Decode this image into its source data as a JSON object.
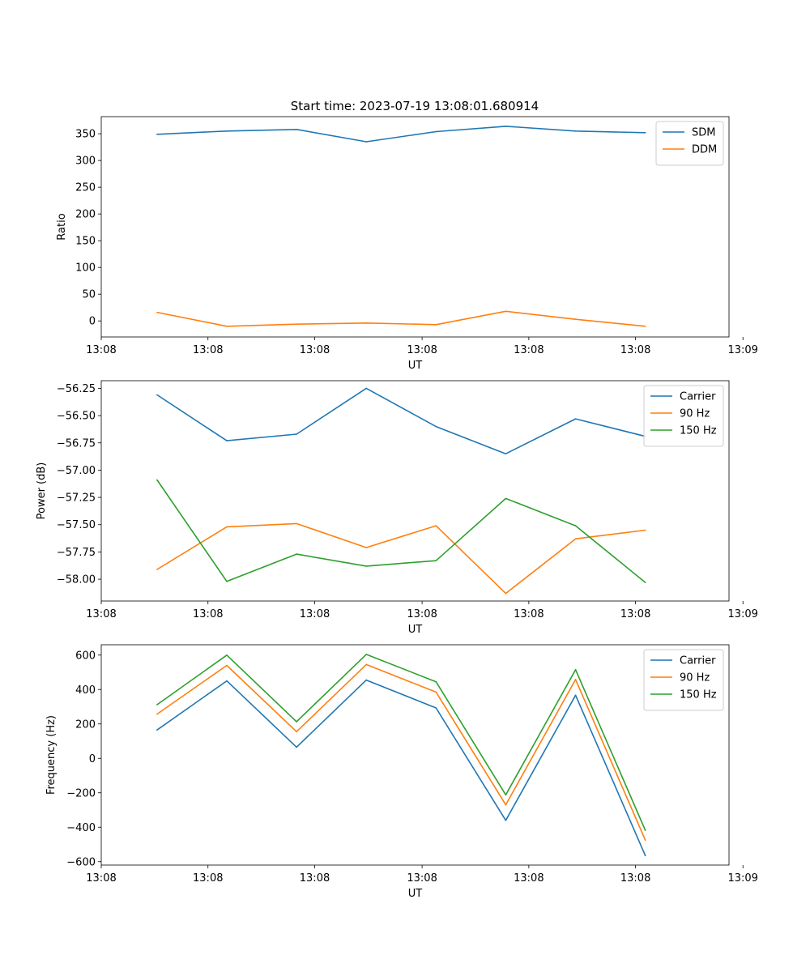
{
  "figure_title": "Start time: 2023-07-19 13:08:01.680914",
  "colors": {
    "blue": "#1f77b4",
    "orange": "#ff7f0e",
    "green": "#2ca02c"
  },
  "chart_data": [
    {
      "type": "line",
      "title": "Start time: 2023-07-19 13:08:01.680914",
      "xlabel": "UT",
      "ylabel": "Ratio",
      "x": [
        1,
        2,
        3,
        4,
        5,
        6,
        7,
        8
      ],
      "xlim": [
        0.2,
        9.2
      ],
      "xticks": [
        0.2,
        1.73,
        3.26,
        4.8,
        6.33,
        7.86,
        9.4
      ],
      "xtick_labels": [
        "13:08",
        "13:08",
        "13:08",
        "13:08",
        "13:08",
        "13:08",
        "13:09"
      ],
      "ylim": [
        -30,
        382
      ],
      "yticks": [
        0,
        50,
        100,
        150,
        200,
        250,
        300,
        350
      ],
      "ytick_labels": [
        "0",
        "50",
        "100",
        "150",
        "200",
        "250",
        "300",
        "350"
      ],
      "legend_position": "top-right",
      "series": [
        {
          "name": "SDM",
          "color": "#1f77b4",
          "values": [
            349,
            355,
            358,
            335,
            354,
            364,
            355,
            352
          ]
        },
        {
          "name": "DDM",
          "color": "#ff7f0e",
          "values": [
            16,
            -10,
            -6,
            -4,
            -7,
            18,
            3,
            -10
          ]
        }
      ]
    },
    {
      "type": "line",
      "title": "",
      "xlabel": "UT",
      "ylabel": "Power (dB)",
      "x": [
        1,
        2,
        3,
        4,
        5,
        6,
        7,
        8
      ],
      "xlim": [
        0.2,
        9.2
      ],
      "xticks": [
        0.2,
        1.73,
        3.26,
        4.8,
        6.33,
        7.86,
        9.4
      ],
      "xtick_labels": [
        "13:08",
        "13:08",
        "13:08",
        "13:08",
        "13:08",
        "13:08",
        "13:09"
      ],
      "ylim": [
        -58.2,
        -56.18
      ],
      "yticks": [
        -58.0,
        -57.75,
        -57.5,
        -57.25,
        -57.0,
        -56.75,
        -56.5,
        -56.25
      ],
      "ytick_labels": [
        "−58.00",
        "−57.75",
        "−57.50",
        "−57.25",
        "−57.00",
        "−56.75",
        "−56.50",
        "−56.25"
      ],
      "legend_position": "top-right",
      "series": [
        {
          "name": "Carrier",
          "color": "#1f77b4",
          "values": [
            -56.31,
            -56.73,
            -56.67,
            -56.25,
            -56.6,
            -56.85,
            -56.53,
            -56.69
          ]
        },
        {
          "name": "90 Hz",
          "color": "#ff7f0e",
          "values": [
            -57.91,
            -57.52,
            -57.49,
            -57.71,
            -57.51,
            -58.13,
            -57.63,
            -57.55
          ]
        },
        {
          "name": "150 Hz",
          "color": "#2ca02c",
          "values": [
            -57.09,
            -58.02,
            -57.77,
            -57.88,
            -57.83,
            -57.26,
            -57.51,
            -58.03
          ]
        }
      ]
    },
    {
      "type": "line",
      "title": "",
      "xlabel": "UT",
      "ylabel": "Frequency (Hz)",
      "x": [
        1,
        2,
        3,
        4,
        5,
        6,
        7,
        8
      ],
      "xlim": [
        0.2,
        9.2
      ],
      "xticks": [
        0.2,
        1.73,
        3.26,
        4.8,
        6.33,
        7.86,
        9.4
      ],
      "xtick_labels": [
        "13:08",
        "13:08",
        "13:08",
        "13:08",
        "13:08",
        "13:08",
        "13:09"
      ],
      "ylim": [
        -620,
        660
      ],
      "yticks": [
        -600,
        -400,
        -200,
        0,
        200,
        400,
        600
      ],
      "ytick_labels": [
        "−600",
        "−400",
        "−200",
        "0",
        "200",
        "400",
        "600"
      ],
      "legend_position": "top-right",
      "series": [
        {
          "name": "Carrier",
          "color": "#1f77b4",
          "values": [
            165,
            450,
            65,
            455,
            293,
            -360,
            367,
            -565
          ]
        },
        {
          "name": "90 Hz",
          "color": "#ff7f0e",
          "values": [
            257,
            540,
            155,
            545,
            385,
            -270,
            458,
            -475
          ]
        },
        {
          "name": "150 Hz",
          "color": "#2ca02c",
          "values": [
            312,
            600,
            213,
            604,
            445,
            -212,
            515,
            -418
          ]
        }
      ]
    }
  ]
}
